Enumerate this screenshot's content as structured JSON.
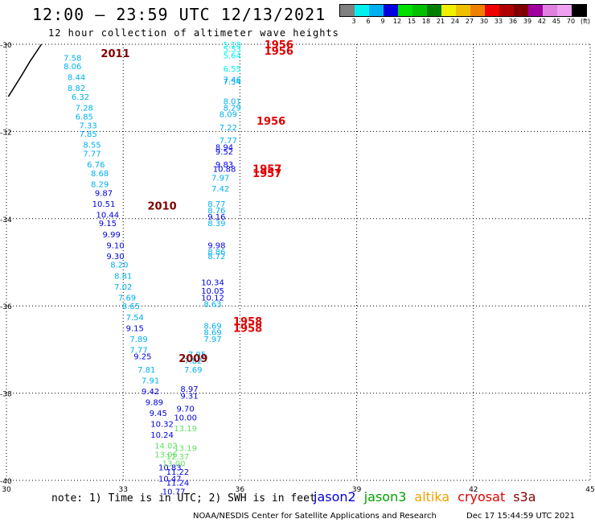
{
  "header": {
    "title": "12:00 – 23:59 UTC 12/13/2021",
    "subtitle": "12 hour collection of altimeter wave heights"
  },
  "legend": {
    "colors": [
      "#808080",
      "#00f0f0",
      "#00b0f0",
      "#0000e0",
      "#00e000",
      "#00c000",
      "#008000",
      "#f0f000",
      "#f0c000",
      "#f08000",
      "#f00000",
      "#b00000",
      "#800000",
      "#a000a0",
      "#e080e0",
      "#f0a0f0",
      "#000000"
    ],
    "labels": [
      "3",
      "6",
      "9",
      "12",
      "15",
      "18",
      "21",
      "24",
      "27",
      "30",
      "33",
      "36",
      "39",
      "42",
      "45",
      "70",
      "(ft)"
    ]
  },
  "footer": {
    "note": "note: 1) Time is in UTC; 2) SWH is in feet",
    "credit": "NOAA/NESDIS Center for Satellite Applications and Research",
    "timestamp": "Dec 17 15:44:59 UTC 2021"
  },
  "satellites": [
    {
      "name": "jason2",
      "color": "#0000e0"
    },
    {
      "name": "jason3",
      "color": "#00a000"
    },
    {
      "name": "altika",
      "color": "#f0a000"
    },
    {
      "name": "cryosat",
      "color": "#e00000"
    },
    {
      "name": "s3a",
      "color": "#800000"
    }
  ],
  "chart_data": {
    "type": "scatter",
    "xlim": [
      30,
      45
    ],
    "ylim": [
      -40,
      -30
    ],
    "xticks": [
      "30",
      "33",
      "36",
      "39",
      "42",
      "45"
    ],
    "yticks": [
      "-30",
      "-32",
      "-34",
      "-36",
      "-38",
      "-40"
    ],
    "grid": true,
    "points": [
      {
        "x": 31.7,
        "y": -30.3,
        "label": "7.58",
        "color": "#00b0f0"
      },
      {
        "x": 31.7,
        "y": -30.5,
        "label": "8.06",
        "color": "#00b0f0"
      },
      {
        "x": 31.8,
        "y": -30.75,
        "label": "8.44",
        "color": "#00b0f0"
      },
      {
        "x": 31.8,
        "y": -31.0,
        "label": "8.82",
        "color": "#00b0f0"
      },
      {
        "x": 31.9,
        "y": -31.2,
        "label": "6.32",
        "color": "#00b0f0"
      },
      {
        "x": 32.0,
        "y": -31.45,
        "label": "7.28",
        "color": "#00b0f0"
      },
      {
        "x": 32.0,
        "y": -31.65,
        "label": "6.85",
        "color": "#00b0f0"
      },
      {
        "x": 32.1,
        "y": -31.85,
        "label": "7.33",
        "color": "#00b0f0"
      },
      {
        "x": 32.1,
        "y": -32.05,
        "label": "7.85",
        "color": "#00b0f0"
      },
      {
        "x": 32.2,
        "y": -32.3,
        "label": "8.55",
        "color": "#00b0f0"
      },
      {
        "x": 32.2,
        "y": -32.5,
        "label": "7.77",
        "color": "#00b0f0"
      },
      {
        "x": 32.3,
        "y": -32.75,
        "label": "6.76",
        "color": "#00b0f0"
      },
      {
        "x": 32.4,
        "y": -32.95,
        "label": "8.68",
        "color": "#00b0f0"
      },
      {
        "x": 32.4,
        "y": -33.2,
        "label": "8.29",
        "color": "#00b0f0"
      },
      {
        "x": 32.5,
        "y": -33.4,
        "label": "9.87",
        "color": "#0000e0"
      },
      {
        "x": 32.5,
        "y": -33.65,
        "label": "10.51",
        "color": "#0000e0"
      },
      {
        "x": 32.6,
        "y": -33.9,
        "label": "10.44",
        "color": "#0000e0"
      },
      {
        "x": 32.6,
        "y": -34.1,
        "label": "9.15",
        "color": "#0000e0"
      },
      {
        "x": 32.7,
        "y": -34.35,
        "label": "9.99",
        "color": "#0000e0"
      },
      {
        "x": 32.8,
        "y": -34.6,
        "label": "9.10",
        "color": "#0000e0"
      },
      {
        "x": 32.8,
        "y": -34.85,
        "label": "9.30",
        "color": "#0000e0"
      },
      {
        "x": 32.9,
        "y": -35.05,
        "label": "8.20",
        "color": "#00b0f0"
      },
      {
        "x": 33.0,
        "y": -35.3,
        "label": "8.81",
        "color": "#00b0f0"
      },
      {
        "x": 33.0,
        "y": -35.55,
        "label": "7.02",
        "color": "#00b0f0"
      },
      {
        "x": 33.1,
        "y": -35.8,
        "label": "7.69",
        "color": "#00b0f0"
      },
      {
        "x": 33.2,
        "y": -36.0,
        "label": "8.65",
        "color": "#00b0f0"
      },
      {
        "x": 33.3,
        "y": -36.25,
        "label": "7.54",
        "color": "#00b0f0"
      },
      {
        "x": 33.3,
        "y": -36.5,
        "label": "9.15",
        "color": "#0000e0"
      },
      {
        "x": 33.4,
        "y": -36.75,
        "label": "7.89",
        "color": "#00b0f0"
      },
      {
        "x": 33.4,
        "y": -37.0,
        "label": "7.77",
        "color": "#00b0f0"
      },
      {
        "x": 33.5,
        "y": -37.15,
        "label": "9.25",
        "color": "#0000e0"
      },
      {
        "x": 33.6,
        "y": -37.45,
        "label": "7.81",
        "color": "#00b0f0"
      },
      {
        "x": 33.7,
        "y": -37.7,
        "label": "7.91",
        "color": "#00b0f0"
      },
      {
        "x": 33.7,
        "y": -37.95,
        "label": "9.42",
        "color": "#0000e0"
      },
      {
        "x": 33.8,
        "y": -38.2,
        "label": "9.89",
        "color": "#0000e0"
      },
      {
        "x": 33.9,
        "y": -38.45,
        "label": "9.45",
        "color": "#0000e0"
      },
      {
        "x": 34.0,
        "y": -38.7,
        "label": "10.32",
        "color": "#0000e0"
      },
      {
        "x": 34.0,
        "y": -38.95,
        "label": "10.24",
        "color": "#0000e0"
      },
      {
        "x": 34.1,
        "y": -39.2,
        "label": "14.02",
        "color": "#60e060"
      },
      {
        "x": 34.1,
        "y": -39.4,
        "label": "13.06",
        "color": "#60e060"
      },
      {
        "x": 34.2,
        "y": -39.7,
        "label": "10.83",
        "color": "#0000e0"
      },
      {
        "x": 34.2,
        "y": -39.95,
        "label": "10.47",
        "color": "#0000e0"
      },
      {
        "x": 34.4,
        "y": -39.45,
        "label": "12.37",
        "color": "#60e060"
      },
      {
        "x": 34.3,
        "y": -39.6,
        "label": "13.00",
        "color": "#60e060"
      },
      {
        "x": 34.4,
        "y": -39.8,
        "label": "11.22",
        "color": "#0000e0"
      },
      {
        "x": 34.4,
        "y": -40.05,
        "label": "11.24",
        "color": "#0000e0"
      },
      {
        "x": 34.3,
        "y": -40.25,
        "label": "10.77",
        "color": "#0000e0"
      },
      {
        "x": 34.6,
        "y": -38.35,
        "label": "9.70",
        "color": "#0000e0"
      },
      {
        "x": 34.6,
        "y": -38.55,
        "label": "10.00",
        "color": "#0000e0"
      },
      {
        "x": 34.6,
        "y": -38.8,
        "label": "13.19",
        "color": "#60e060"
      },
      {
        "x": 34.6,
        "y": -39.25,
        "label": "13.19",
        "color": "#60e060"
      },
      {
        "x": 34.7,
        "y": -37.9,
        "label": "8.97",
        "color": "#0000e0"
      },
      {
        "x": 34.7,
        "y": -38.05,
        "label": "9.31",
        "color": "#0000e0"
      },
      {
        "x": 34.8,
        "y": -37.45,
        "label": "7.69",
        "color": "#00b0f0"
      },
      {
        "x": 34.8,
        "y": -37.25,
        "label": "7.82",
        "color": "#00b0f0"
      },
      {
        "x": 34.9,
        "y": -37.1,
        "label": "7.95",
        "color": "#00b0f0"
      },
      {
        "x": 35.3,
        "y": -36.75,
        "label": "7.97",
        "color": "#00b0f0"
      },
      {
        "x": 35.3,
        "y": -36.45,
        "label": "8.69",
        "color": "#00b0f0"
      },
      {
        "x": 35.3,
        "y": -36.6,
        "label": "8.69",
        "color": "#00b0f0"
      },
      {
        "x": 35.3,
        "y": -35.95,
        "label": "8.63",
        "color": "#00b0f0"
      },
      {
        "x": 35.3,
        "y": -35.8,
        "label": "10.12",
        "color": "#0000e0"
      },
      {
        "x": 35.3,
        "y": -35.65,
        "label": "10.05",
        "color": "#0000e0"
      },
      {
        "x": 35.3,
        "y": -35.45,
        "label": "10.34",
        "color": "#0000e0"
      },
      {
        "x": 35.4,
        "y": -34.85,
        "label": "8.72",
        "color": "#00b0f0"
      },
      {
        "x": 35.4,
        "y": -34.75,
        "label": "8.86",
        "color": "#00b0f0"
      },
      {
        "x": 35.4,
        "y": -34.6,
        "label": "9.98",
        "color": "#0000e0"
      },
      {
        "x": 35.4,
        "y": -34.1,
        "label": "8.39",
        "color": "#00b0f0"
      },
      {
        "x": 35.4,
        "y": -33.95,
        "label": "9.16",
        "color": "#0000e0"
      },
      {
        "x": 35.4,
        "y": -33.8,
        "label": "8.76",
        "color": "#00b0f0"
      },
      {
        "x": 35.4,
        "y": -33.65,
        "label": "8.77",
        "color": "#00b0f0"
      },
      {
        "x": 35.5,
        "y": -33.3,
        "label": "7.42",
        "color": "#00b0f0"
      },
      {
        "x": 35.5,
        "y": -33.05,
        "label": "7.97",
        "color": "#00b0f0"
      },
      {
        "x": 35.6,
        "y": -32.85,
        "label": "10.88",
        "color": "#0000e0"
      },
      {
        "x": 35.6,
        "y": -32.75,
        "label": "9.83",
        "color": "#0000e0"
      },
      {
        "x": 35.6,
        "y": -32.45,
        "label": "9.52",
        "color": "#0000e0"
      },
      {
        "x": 35.6,
        "y": -32.35,
        "label": "8.94",
        "color": "#0000e0"
      },
      {
        "x": 35.7,
        "y": -32.2,
        "label": "7.77",
        "color": "#00b0f0"
      },
      {
        "x": 35.7,
        "y": -31.9,
        "label": "7.22",
        "color": "#00b0f0"
      },
      {
        "x": 35.7,
        "y": -31.6,
        "label": "8.09",
        "color": "#00b0f0"
      },
      {
        "x": 35.8,
        "y": -31.45,
        "label": "8.29",
        "color": "#00b0f0"
      },
      {
        "x": 35.8,
        "y": -31.3,
        "label": "8.01",
        "color": "#00b0f0"
      },
      {
        "x": 35.8,
        "y": -30.85,
        "label": "7.54",
        "color": "#00b0f0"
      },
      {
        "x": 35.8,
        "y": -30.8,
        "label": "7.46",
        "color": "#00b0f0"
      },
      {
        "x": 35.8,
        "y": -30.55,
        "label": "6.55",
        "color": "#00f0f0"
      },
      {
        "x": 35.8,
        "y": -30.25,
        "label": "5.64",
        "color": "#00f0f0"
      },
      {
        "x": 35.8,
        "y": -30.1,
        "label": "5.53",
        "color": "#00f0f0"
      },
      {
        "x": 35.8,
        "y": -30.0,
        "label": "5.18",
        "color": "#00f0f0"
      }
    ],
    "annotations": [
      {
        "x": 32.8,
        "y": -30.2,
        "text": "2011",
        "color": "#800000"
      },
      {
        "x": 34.0,
        "y": -33.7,
        "text": "2010",
        "color": "#800000"
      },
      {
        "x": 34.8,
        "y": -37.2,
        "text": "2009",
        "color": "#800000"
      },
      {
        "x": 37.0,
        "y": -30.0,
        "text": "1956",
        "color": "#e00000"
      },
      {
        "x": 37.0,
        "y": -30.15,
        "text": "1956",
        "color": "#e00000"
      },
      {
        "x": 36.8,
        "y": -31.75,
        "text": "1956",
        "color": "#e00000"
      },
      {
        "x": 36.7,
        "y": -32.85,
        "text": "1957",
        "color": "#e00000"
      },
      {
        "x": 36.7,
        "y": -32.95,
        "text": "1957",
        "color": "#e00000"
      },
      {
        "x": 36.2,
        "y": -36.35,
        "text": "1958",
        "color": "#e00000"
      },
      {
        "x": 36.2,
        "y": -36.5,
        "text": "1958",
        "color": "#e00000"
      }
    ],
    "coastline": [
      [
        30.05,
        -31.2
      ],
      [
        30.4,
        -30.7
      ],
      [
        30.6,
        -30.4
      ],
      [
        30.9,
        -30.0
      ]
    ]
  }
}
